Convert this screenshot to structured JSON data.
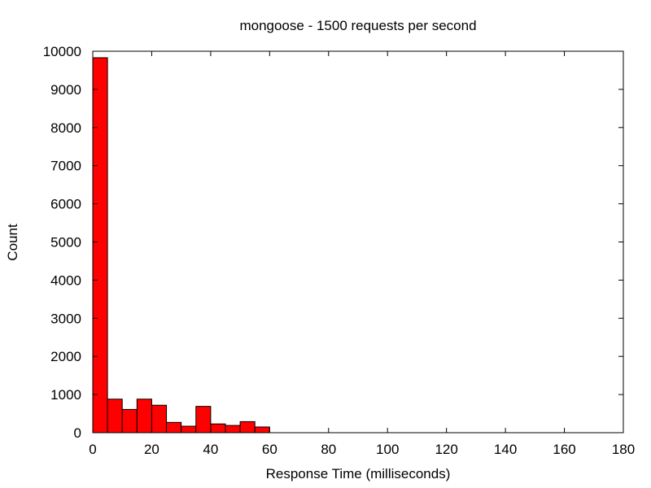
{
  "chart_data": {
    "type": "bar",
    "title": "mongoose - 1500 requests per second",
    "xlabel": "Response Time (milliseconds)",
    "ylabel": "Count",
    "xlim": [
      0,
      180
    ],
    "ylim": [
      0,
      10000
    ],
    "xticks": [
      0,
      20,
      40,
      60,
      80,
      100,
      120,
      140,
      160,
      180
    ],
    "yticks": [
      0,
      1000,
      2000,
      3000,
      4000,
      5000,
      6000,
      7000,
      8000,
      9000,
      10000
    ],
    "bin_width": 5,
    "bins": [
      {
        "x": 0,
        "value": 9830
      },
      {
        "x": 5,
        "value": 880
      },
      {
        "x": 10,
        "value": 610
      },
      {
        "x": 15,
        "value": 880
      },
      {
        "x": 20,
        "value": 720
      },
      {
        "x": 25,
        "value": 270
      },
      {
        "x": 30,
        "value": 170
      },
      {
        "x": 35,
        "value": 690
      },
      {
        "x": 40,
        "value": 230
      },
      {
        "x": 45,
        "value": 190
      },
      {
        "x": 50,
        "value": 290
      },
      {
        "x": 55,
        "value": 150
      }
    ],
    "color": "#ff0000",
    "grid": false,
    "legend": "none"
  }
}
